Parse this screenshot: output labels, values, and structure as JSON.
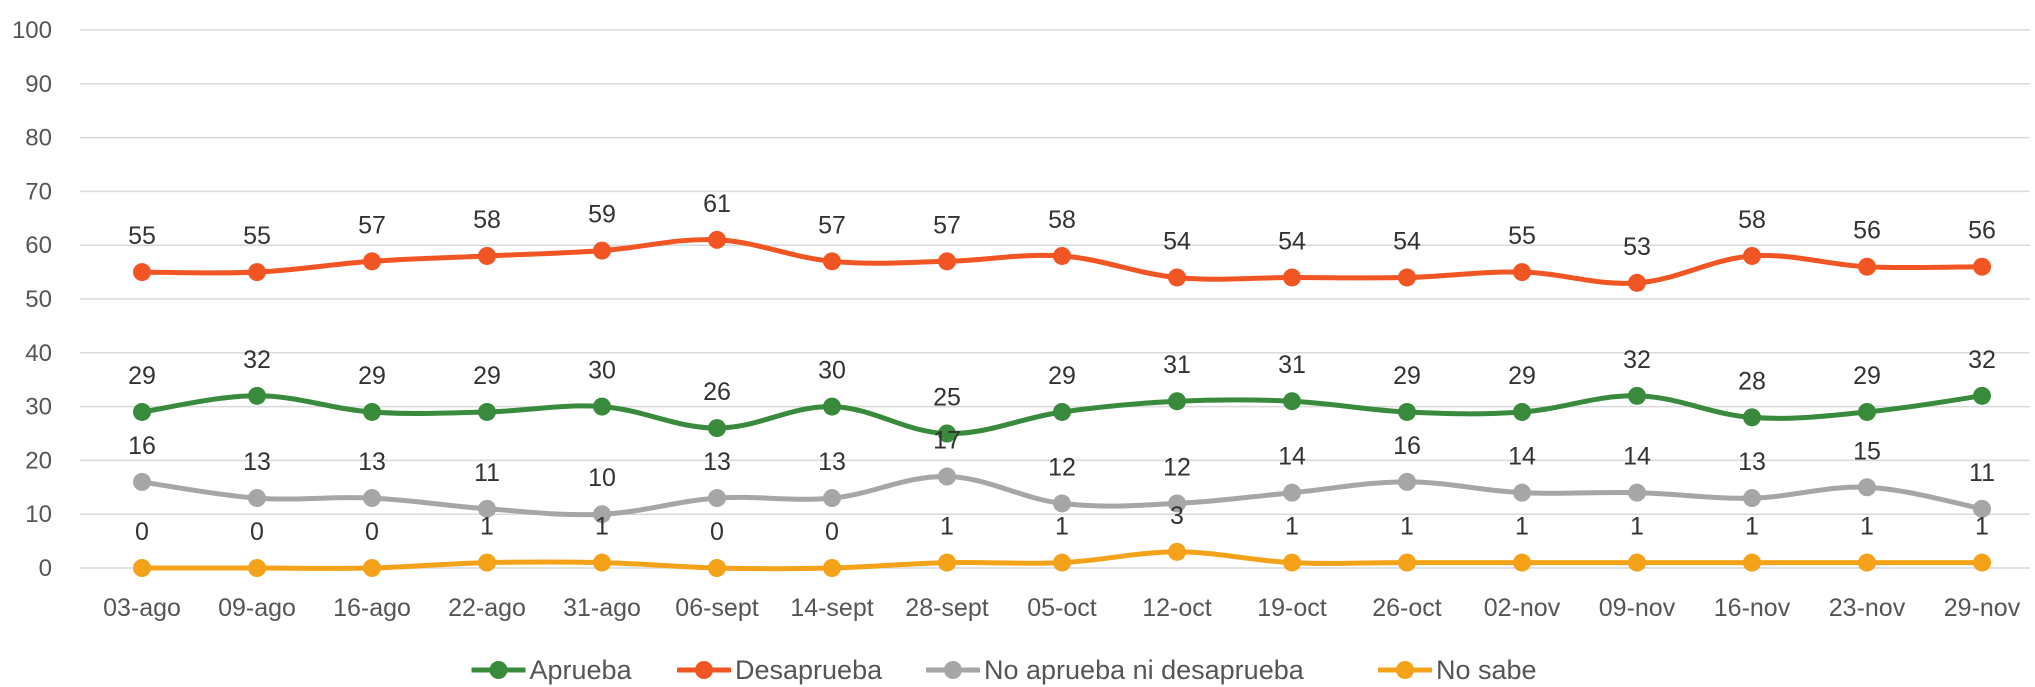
{
  "chart_data": {
    "type": "line",
    "title": "",
    "xlabel": "",
    "ylabel": "",
    "ylim": [
      0,
      100
    ],
    "yticks": [
      0,
      10,
      20,
      30,
      40,
      50,
      60,
      70,
      80,
      90,
      100
    ],
    "grid": true,
    "legend_position": "bottom",
    "categories": [
      "03-ago",
      "09-ago",
      "16-ago",
      "22-ago",
      "31-ago",
      "06-sept",
      "14-sept",
      "28-sept",
      "05-oct",
      "12-oct",
      "19-oct",
      "26-oct",
      "02-nov",
      "09-nov",
      "16-nov",
      "23-nov",
      "29-nov"
    ],
    "series": [
      {
        "name": "Aprueba",
        "color": "#3a8a3e",
        "values": [
          29,
          32,
          29,
          29,
          30,
          26,
          30,
          25,
          29,
          31,
          31,
          29,
          29,
          32,
          28,
          29,
          32
        ]
      },
      {
        "name": "Desaprueba",
        "color": "#f05523",
        "values": [
          55,
          55,
          57,
          58,
          59,
          61,
          57,
          57,
          58,
          54,
          54,
          54,
          55,
          53,
          58,
          56,
          56
        ]
      },
      {
        "name": "No aprueba ni desaprueba",
        "color": "#a6a6a6",
        "values": [
          16,
          13,
          13,
          11,
          10,
          13,
          13,
          17,
          12,
          12,
          14,
          16,
          14,
          14,
          13,
          15,
          11
        ]
      },
      {
        "name": "No sabe",
        "color": "#f5a21b",
        "values": [
          0,
          0,
          0,
          1,
          1,
          0,
          0,
          1,
          1,
          3,
          1,
          1,
          1,
          1,
          1,
          1,
          1
        ]
      }
    ]
  }
}
